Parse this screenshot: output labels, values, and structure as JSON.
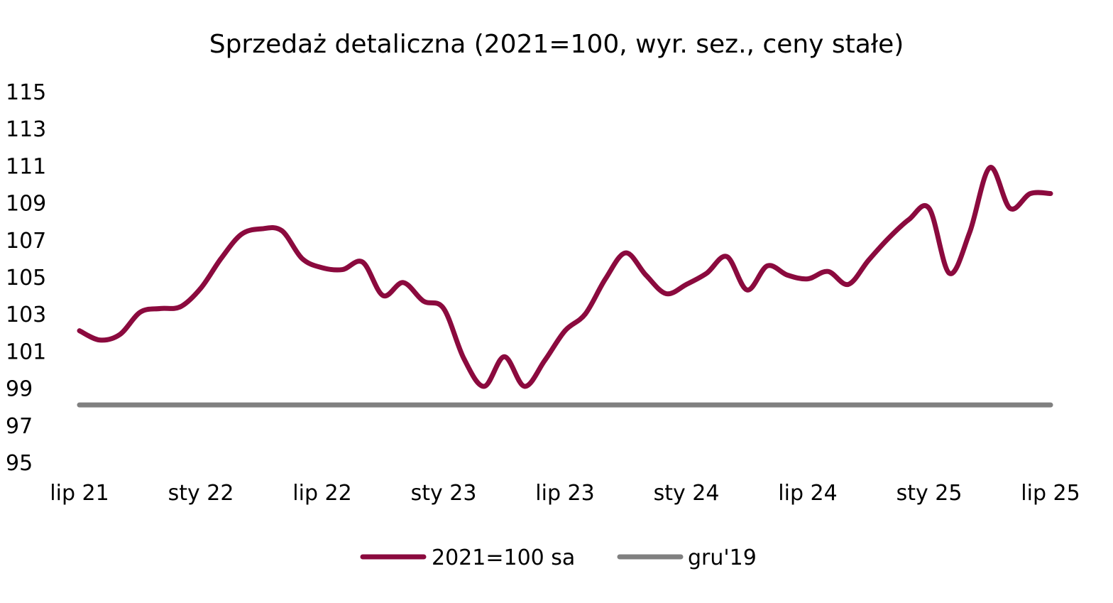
{
  "chart_data": {
    "type": "line",
    "title": "Sprzedaż detaliczna (2021=100, wyr. sez., ceny stałe)",
    "xlabel": "",
    "ylabel": "",
    "ylim": [
      95,
      115
    ],
    "yticks": [
      95,
      97,
      99,
      101,
      103,
      105,
      107,
      109,
      111,
      113,
      115
    ],
    "x_labels": [
      "lip 21",
      "sty 22",
      "lip 22",
      "sty 23",
      "lip 23",
      "sty 24",
      "lip 24",
      "sty 25",
      "lip 25"
    ],
    "x_label_index": [
      0,
      6,
      12,
      18,
      24,
      30,
      36,
      42,
      48
    ],
    "grid": false,
    "legend_position": "bottom",
    "x": [
      "lip 21",
      "sie 21",
      "wrz 21",
      "paź 21",
      "lis 21",
      "gru 21",
      "sty 22",
      "lut 22",
      "mar 22",
      "kwi 22",
      "maj 22",
      "cze 22",
      "lip 22",
      "sie 22",
      "wrz 22",
      "paź 22",
      "lis 22",
      "gru 22",
      "sty 23",
      "lut 23",
      "mar 23",
      "kwi 23",
      "maj 23",
      "cze 23",
      "lip 23",
      "sie 23",
      "wrz 23",
      "paź 23",
      "lis 23",
      "gru 23",
      "sty 24",
      "lut 24",
      "mar 24",
      "kwi 24",
      "maj 24",
      "cze 24",
      "lip 24",
      "sie 24",
      "wrz 24",
      "paź 24",
      "lis 24",
      "gru 24",
      "sty 25",
      "lut 25",
      "mar 25",
      "kwi 25",
      "maj 25",
      "cze 25",
      "lip 25"
    ],
    "series": [
      {
        "name": "2021=100 sa",
        "color": "#8b0a3e",
        "values": [
          102.1,
          101.6,
          101.9,
          103.1,
          103.3,
          103.4,
          104.4,
          106.0,
          107.3,
          107.6,
          107.5,
          106.0,
          105.5,
          105.4,
          105.8,
          104.0,
          104.7,
          103.7,
          103.3,
          100.6,
          99.1,
          100.7,
          99.1,
          100.5,
          102.1,
          103.0,
          104.9,
          106.3,
          105.1,
          104.1,
          104.6,
          105.2,
          106.1,
          104.3,
          105.6,
          105.1,
          104.9,
          105.3,
          104.6,
          105.9,
          107.1,
          108.1,
          108.7,
          105.2,
          107.4,
          110.9,
          108.7,
          109.5,
          109.5
        ]
      },
      {
        "name": "gru'19",
        "color": "#808080",
        "values": [
          98.1,
          98.1,
          98.1,
          98.1,
          98.1,
          98.1,
          98.1,
          98.1,
          98.1,
          98.1,
          98.1,
          98.1,
          98.1,
          98.1,
          98.1,
          98.1,
          98.1,
          98.1,
          98.1,
          98.1,
          98.1,
          98.1,
          98.1,
          98.1,
          98.1,
          98.1,
          98.1,
          98.1,
          98.1,
          98.1,
          98.1,
          98.1,
          98.1,
          98.1,
          98.1,
          98.1,
          98.1,
          98.1,
          98.1,
          98.1,
          98.1,
          98.1,
          98.1,
          98.1,
          98.1,
          98.1,
          98.1,
          98.1,
          98.1
        ]
      }
    ]
  }
}
